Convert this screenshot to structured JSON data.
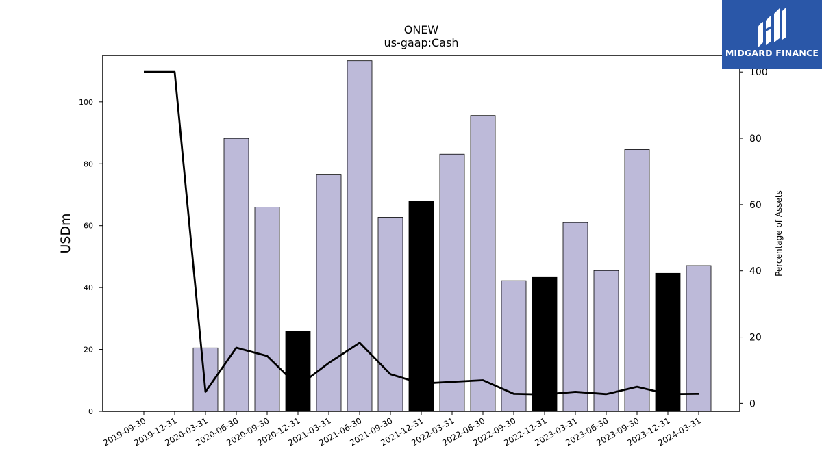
{
  "chart_data": {
    "type": "bar",
    "title": "ONEW",
    "subtitle": "us-gaap:Cash",
    "ylabel": "USDm",
    "y2label": "Percentage of Assets",
    "categories": [
      "2019-09-30",
      "2019-12-31",
      "2020-03-31",
      "2020-06-30",
      "2020-09-30",
      "2020-12-31",
      "2021-03-31",
      "2021-06-30",
      "2021-09-30",
      "2021-12-31",
      "2022-03-31",
      "2022-06-30",
      "2022-09-30",
      "2022-12-31",
      "2023-03-31",
      "2023-06-30",
      "2023-09-30",
      "2023-12-31",
      "2024-03-31"
    ],
    "series": [
      {
        "type": "bar",
        "values": [
          0,
          0,
          20.5,
          88.2,
          66.0,
          26.0,
          76.6,
          113.3,
          62.7,
          68.0,
          83.1,
          95.6,
          42.2,
          43.5,
          61.0,
          45.5,
          84.6,
          44.6,
          47.1
        ],
        "colors": [
          "#bdbad9",
          "#bdbad9",
          "#bdbad9",
          "#bdbad9",
          "#bdbad9",
          "#000000",
          "#bdbad9",
          "#bdbad9",
          "#bdbad9",
          "#000000",
          "#bdbad9",
          "#bdbad9",
          "#bdbad9",
          "#000000",
          "#bdbad9",
          "#bdbad9",
          "#bdbad9",
          "#000000",
          "#bdbad9"
        ]
      },
      {
        "type": "line",
        "axis": "right",
        "color": "#000000",
        "values": [
          100,
          100,
          3.5,
          16.8,
          14.3,
          5.2,
          12.2,
          18.3,
          8.8,
          6.0,
          6.5,
          7.0,
          2.9,
          2.7,
          3.5,
          2.8,
          5.0,
          2.8,
          2.9
        ]
      }
    ],
    "ylim": [
      0,
      115
    ],
    "yticks": [
      0,
      20,
      40,
      60,
      80,
      100
    ],
    "y2lim": [
      -2.4,
      105
    ],
    "y2ticks": [
      0,
      20,
      40,
      60,
      80,
      100
    ],
    "grid": false
  },
  "logo": {
    "text": "MIDGARD FINANCE",
    "background": "#2a57a8",
    "icon": "midgard-logo-icon"
  }
}
